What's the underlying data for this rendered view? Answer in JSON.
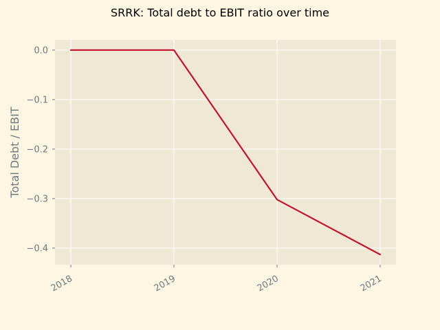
{
  "colors": {
    "figure_background": "#fdf6e3",
    "plot_background": "#eee8d5",
    "grid": "#ffffff",
    "line": "#c8102e",
    "tick_text": "#6c7a83",
    "title_text": "#000000"
  },
  "chart_data": {
    "type": "line",
    "title": "SRRK: Total debt to EBIT ratio over time",
    "xlabel": "",
    "ylabel": "Total Debt / EBIT",
    "x": [
      "2018",
      "2019",
      "2020",
      "2021"
    ],
    "series": [
      {
        "values": [
          0.0,
          0.0,
          -0.302,
          -0.413
        ]
      }
    ],
    "ylim": [
      -0.4335,
      0.0206
    ],
    "yticks": [
      0.0,
      -0.1,
      -0.2,
      -0.3,
      -0.4
    ],
    "ytick_labels": [
      "0.0",
      "−0.1",
      "−0.2",
      "−0.3",
      "−0.4"
    ],
    "xtick_labels": [
      "2018",
      "2019",
      "2020",
      "2021"
    ],
    "grid": true,
    "legend": "none"
  }
}
